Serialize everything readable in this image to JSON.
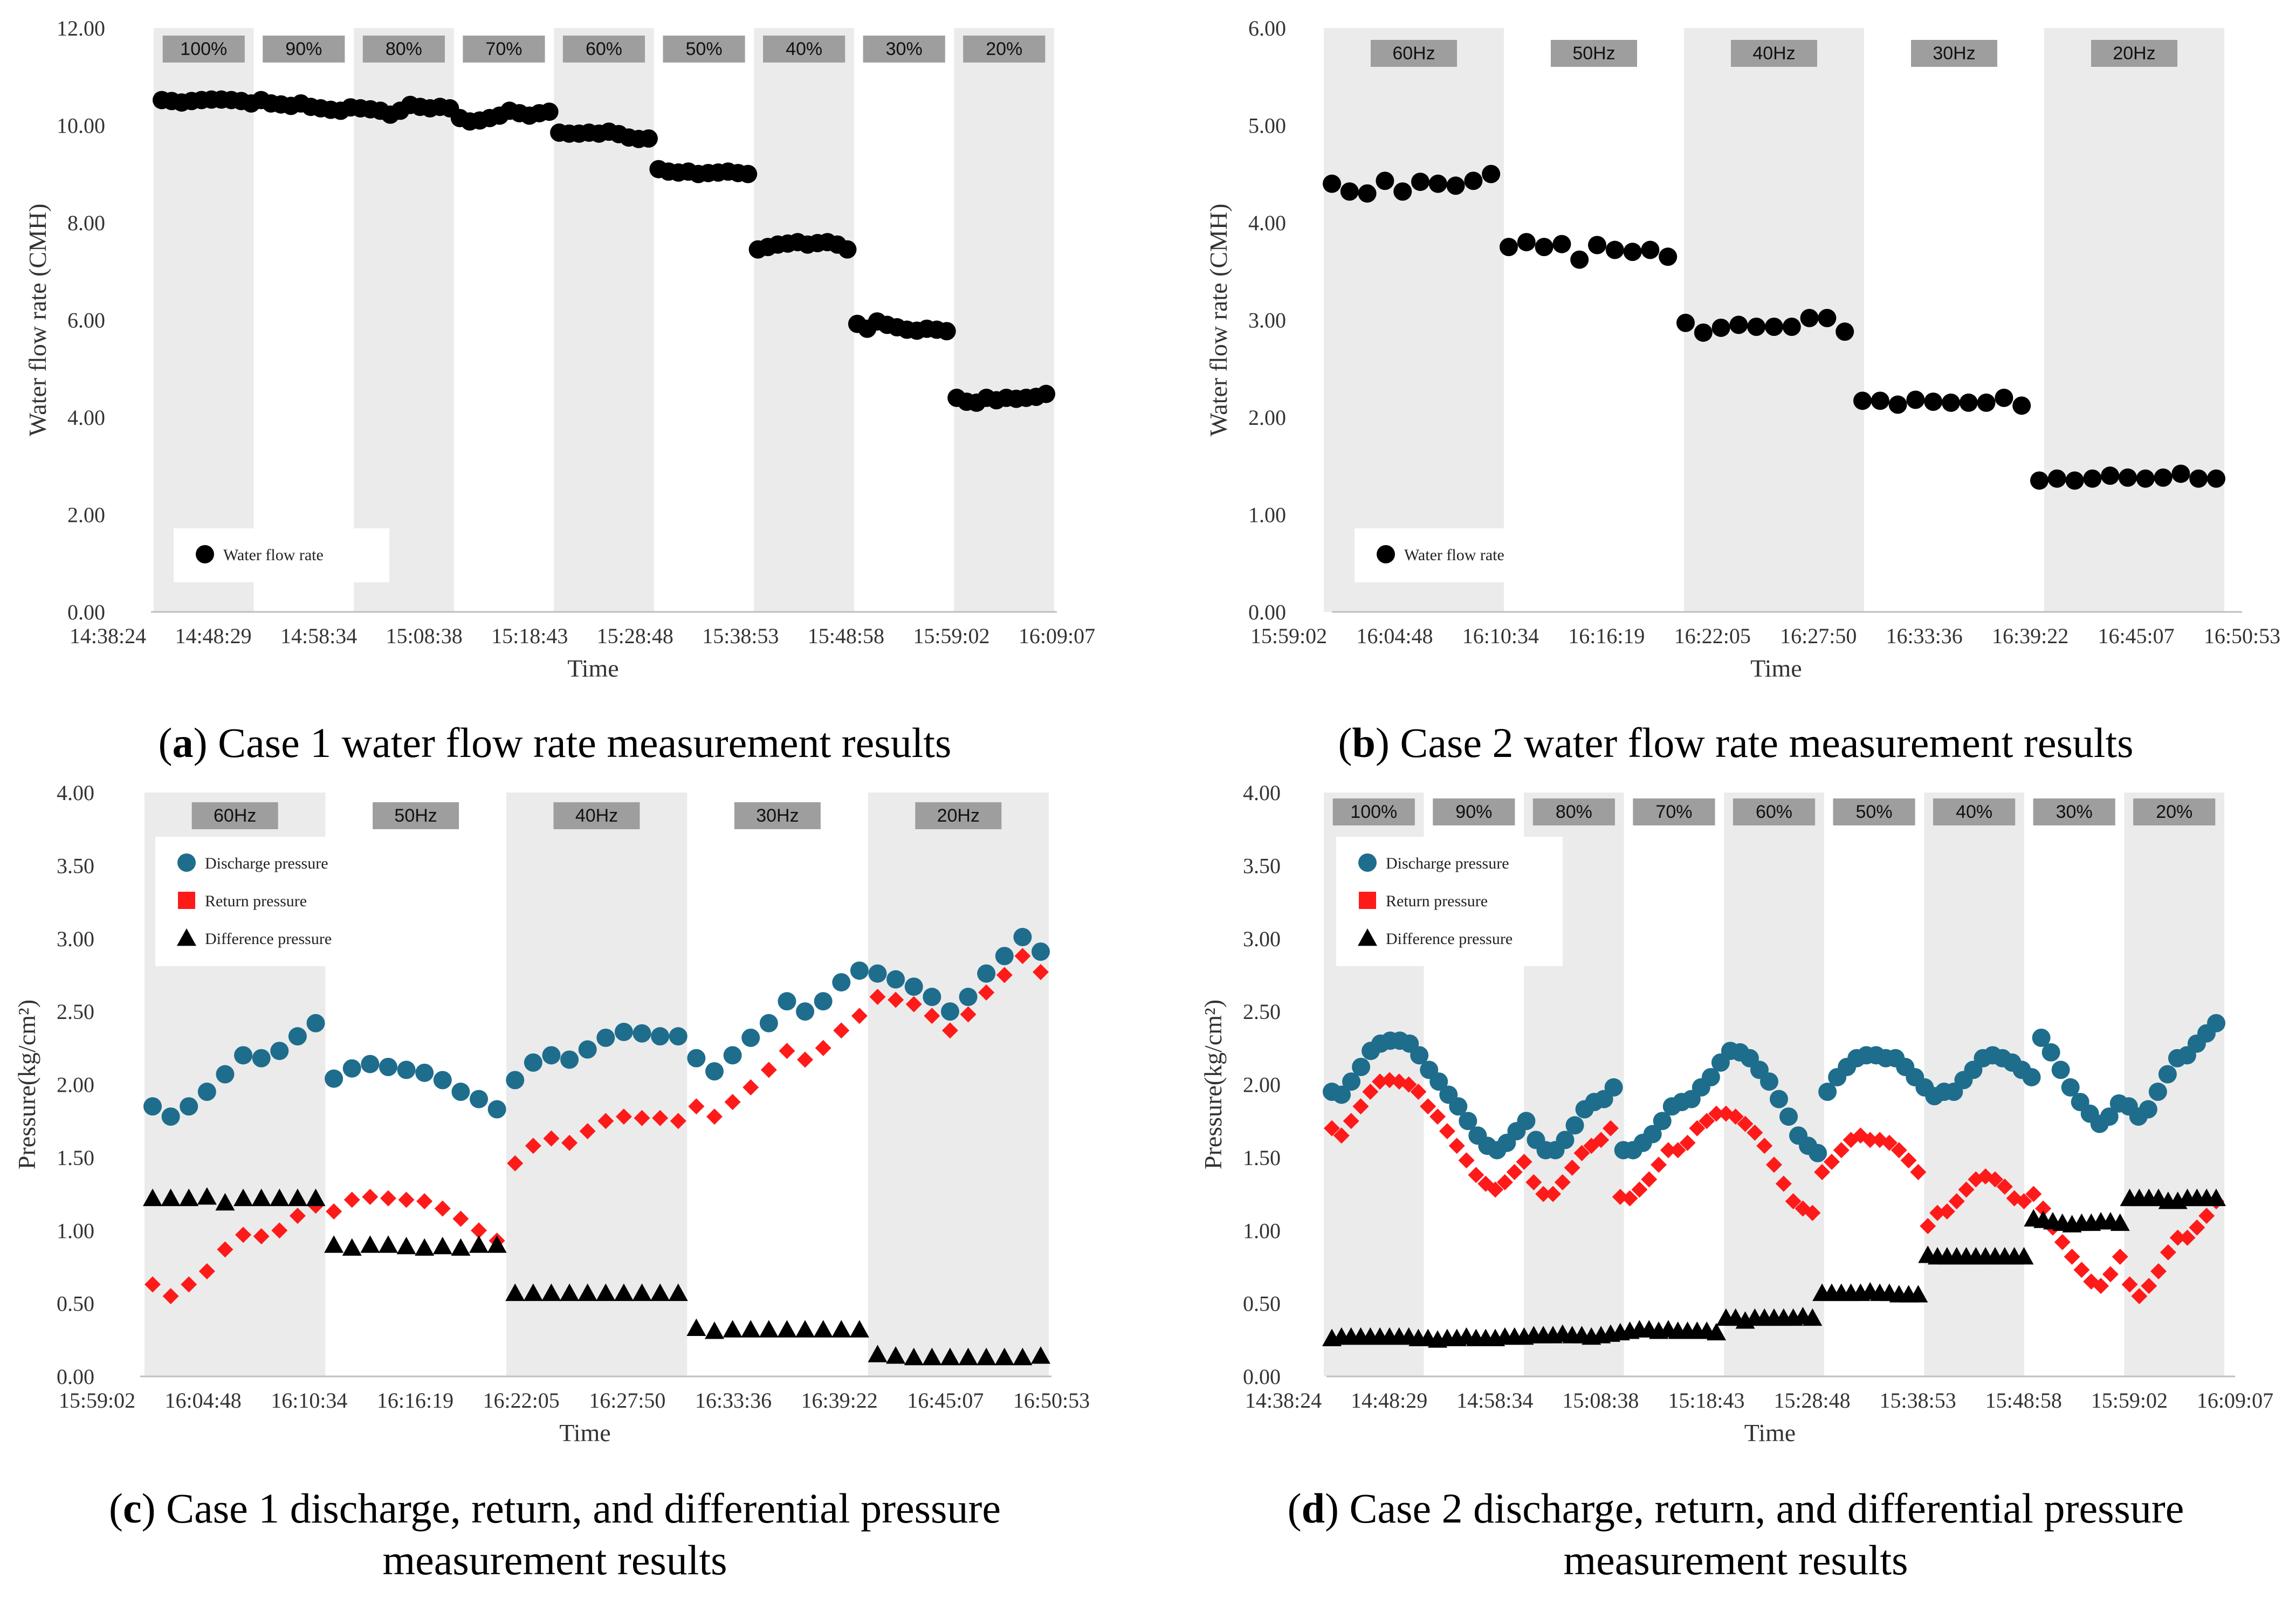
{
  "chart_data": [
    {
      "type": "scatter",
      "panel": "a",
      "ylabel": "Water flow rate (CMH)",
      "xlabel": "Time",
      "ylim": [
        0,
        12
      ],
      "yticks": [
        "0.00",
        "2.00",
        "4.00",
        "6.00",
        "8.00",
        "10.00",
        "12.00"
      ],
      "xticks": [
        "14:38:24",
        "14:48:29",
        "14:58:34",
        "15:08:38",
        "15:18:43",
        "15:28:48",
        "15:38:53",
        "15:48:58",
        "15:59:02",
        "16:09:07"
      ],
      "bands": [
        "100%",
        "90%",
        "80%",
        "70%",
        "60%",
        "50%",
        "40%",
        "30%",
        "20%"
      ],
      "legend_position": "bottom-left",
      "series": [
        {
          "name": "Water flow rate",
          "marker": "circle",
          "color": "#000000",
          "values": [
            10.52,
            10.5,
            10.47,
            10.5,
            10.52,
            10.53,
            10.53,
            10.52,
            10.5,
            10.45,
            10.52,
            10.45,
            10.43,
            10.4,
            10.45,
            10.38,
            10.35,
            10.32,
            10.3,
            10.37,
            10.35,
            10.33,
            10.3,
            10.22,
            10.3,
            10.42,
            10.38,
            10.35,
            10.38,
            10.35,
            10.15,
            10.08,
            10.1,
            10.15,
            10.2,
            10.3,
            10.25,
            10.2,
            10.25,
            10.28,
            9.85,
            9.83,
            9.83,
            9.85,
            9.83,
            9.87,
            9.82,
            9.75,
            9.72,
            9.73,
            9.1,
            9.05,
            9.03,
            9.05,
            9.0,
            9.02,
            9.03,
            9.05,
            9.02,
            9.0,
            7.45,
            7.5,
            7.55,
            7.57,
            7.6,
            7.55,
            7.58,
            7.6,
            7.55,
            7.45,
            5.92,
            5.82,
            5.97,
            5.9,
            5.85,
            5.8,
            5.78,
            5.82,
            5.8,
            5.77,
            4.4,
            4.32,
            4.3,
            4.4,
            4.35,
            4.4,
            4.38,
            4.4,
            4.42,
            4.48
          ]
        }
      ]
    },
    {
      "type": "scatter",
      "panel": "b",
      "ylabel": "Water flow rate (CMH)",
      "xlabel": "Time",
      "ylim": [
        0,
        6
      ],
      "yticks": [
        "0.00",
        "1.00",
        "2.00",
        "3.00",
        "4.00",
        "5.00",
        "6.00"
      ],
      "xticks": [
        "15:59:02",
        "16:04:48",
        "16:10:34",
        "16:16:19",
        "16:22:05",
        "16:27:50",
        "16:33:36",
        "16:39:22",
        "16:45:07",
        "16:50:53"
      ],
      "bands": [
        "60Hz",
        "50Hz",
        "40Hz",
        "30Hz",
        "20Hz"
      ],
      "legend_position": "bottom-left",
      "series": [
        {
          "name": "Water flow rate",
          "marker": "circle",
          "color": "#000000",
          "values": [
            4.4,
            4.32,
            4.3,
            4.43,
            4.32,
            4.42,
            4.4,
            4.38,
            4.43,
            4.5,
            3.75,
            3.8,
            3.75,
            3.78,
            3.62,
            3.77,
            3.72,
            3.7,
            3.72,
            3.65,
            2.97,
            2.87,
            2.92,
            2.95,
            2.93,
            2.93,
            2.93,
            3.02,
            3.02,
            2.88,
            2.17,
            2.17,
            2.13,
            2.18,
            2.16,
            2.15,
            2.15,
            2.15,
            2.2,
            2.12,
            1.35,
            1.37,
            1.35,
            1.37,
            1.4,
            1.38,
            1.37,
            1.38,
            1.42,
            1.37,
            1.37
          ]
        }
      ]
    },
    {
      "type": "scatter",
      "panel": "c",
      "ylabel": "Pressure(kg/cm²)",
      "xlabel": "Time",
      "ylim": [
        0,
        4
      ],
      "yticks": [
        "0.00",
        "0.50",
        "1.00",
        "1.50",
        "2.00",
        "2.50",
        "3.00",
        "3.50",
        "4.00"
      ],
      "xticks": [
        "15:59:02",
        "16:04:48",
        "16:10:34",
        "16:16:19",
        "16:22:05",
        "16:27:50",
        "16:33:36",
        "16:39:22",
        "16:45:07",
        "16:50:53"
      ],
      "bands": [
        "60Hz",
        "50Hz",
        "40Hz",
        "30Hz",
        "20Hz"
      ],
      "legend_position": "top-left",
      "series": [
        {
          "name": "Discharge pressure",
          "marker": "circle",
          "color": "#1f6d8c",
          "values": [
            1.85,
            1.78,
            1.85,
            1.95,
            2.07,
            2.2,
            2.18,
            2.23,
            2.33,
            2.42,
            2.04,
            2.11,
            2.14,
            2.12,
            2.1,
            2.08,
            2.03,
            1.95,
            1.9,
            1.83,
            2.03,
            2.15,
            2.2,
            2.17,
            2.24,
            2.32,
            2.36,
            2.35,
            2.33,
            2.33,
            2.18,
            2.09,
            2.2,
            2.32,
            2.42,
            2.57,
            2.5,
            2.57,
            2.7,
            2.78,
            2.76,
            2.72,
            2.67,
            2.6,
            2.5,
            2.6,
            2.76,
            2.88,
            3.01,
            2.91
          ]
        },
        {
          "name": "Return pressure",
          "marker": "diamond",
          "color": "#ff1a1a",
          "values": [
            0.63,
            0.55,
            0.63,
            0.72,
            0.87,
            0.97,
            0.96,
            1.0,
            1.1,
            1.17,
            1.13,
            1.21,
            1.23,
            1.22,
            1.21,
            1.2,
            1.15,
            1.08,
            1.0,
            0.93,
            1.46,
            1.58,
            1.63,
            1.6,
            1.68,
            1.75,
            1.78,
            1.77,
            1.77,
            1.75,
            1.85,
            1.78,
            1.88,
            1.98,
            2.1,
            2.23,
            2.17,
            2.25,
            2.37,
            2.47,
            2.6,
            2.58,
            2.55,
            2.47,
            2.37,
            2.48,
            2.63,
            2.75,
            2.88,
            2.77
          ]
        },
        {
          "name": "Difference pressure",
          "marker": "triangle",
          "color": "#000000",
          "values": [
            1.22,
            1.22,
            1.22,
            1.23,
            1.19,
            1.22,
            1.22,
            1.22,
            1.22,
            1.22,
            0.9,
            0.88,
            0.9,
            0.9,
            0.89,
            0.88,
            0.89,
            0.88,
            0.9,
            0.9,
            0.57,
            0.57,
            0.57,
            0.57,
            0.57,
            0.57,
            0.57,
            0.57,
            0.57,
            0.57,
            0.33,
            0.31,
            0.32,
            0.32,
            0.32,
            0.32,
            0.32,
            0.32,
            0.32,
            0.32,
            0.15,
            0.14,
            0.13,
            0.13,
            0.13,
            0.13,
            0.13,
            0.13,
            0.13,
            0.14
          ]
        }
      ]
    },
    {
      "type": "scatter",
      "panel": "d",
      "ylabel": "Pressure(kg/cm²)",
      "xlabel": "Time",
      "ylim": [
        0,
        4
      ],
      "yticks": [
        "0.00",
        "0.50",
        "1.00",
        "1.50",
        "2.00",
        "2.50",
        "3.00",
        "3.50",
        "4.00"
      ],
      "xticks": [
        "14:38:24",
        "14:48:29",
        "14:58:34",
        "15:08:38",
        "15:18:43",
        "15:28:48",
        "15:38:53",
        "15:48:58",
        "15:59:02",
        "16:09:07"
      ],
      "bands": [
        "100%",
        "90%",
        "80%",
        "70%",
        "60%",
        "50%",
        "40%",
        "30%",
        "20%"
      ],
      "legend_position": "top-left",
      "series": [
        {
          "name": "Discharge pressure",
          "marker": "circle",
          "color": "#1f6d8c",
          "values": [
            1.95,
            1.93,
            2.02,
            2.12,
            2.23,
            2.28,
            2.3,
            2.3,
            2.28,
            2.2,
            2.1,
            2.02,
            1.93,
            1.85,
            1.75,
            1.65,
            1.58,
            1.55,
            1.6,
            1.68,
            1.75,
            1.62,
            1.55,
            1.55,
            1.62,
            1.72,
            1.83,
            1.88,
            1.9,
            1.98,
            1.55,
            1.55,
            1.6,
            1.66,
            1.75,
            1.85,
            1.88,
            1.9,
            1.98,
            2.05,
            2.15,
            2.23,
            2.22,
            2.18,
            2.1,
            2.02,
            1.9,
            1.78,
            1.65,
            1.58,
            1.53,
            1.95,
            2.05,
            2.12,
            2.18,
            2.2,
            2.2,
            2.18,
            2.18,
            2.12,
            2.05,
            1.98,
            1.92,
            1.95,
            1.95,
            2.03,
            2.1,
            2.18,
            2.2,
            2.18,
            2.15,
            2.1,
            2.05,
            2.32,
            2.22,
            2.1,
            1.98,
            1.88,
            1.8,
            1.73,
            1.78,
            1.87,
            1.85,
            1.78,
            1.83,
            1.95,
            2.07,
            2.18,
            2.2,
            2.28,
            2.35,
            2.42
          ]
        },
        {
          "name": "Return pressure",
          "marker": "diamond",
          "color": "#ff1a1a",
          "values": [
            1.7,
            1.65,
            1.75,
            1.85,
            1.95,
            2.02,
            2.03,
            2.02,
            2.0,
            1.95,
            1.85,
            1.78,
            1.68,
            1.58,
            1.48,
            1.38,
            1.32,
            1.28,
            1.33,
            1.4,
            1.47,
            1.33,
            1.25,
            1.25,
            1.33,
            1.43,
            1.53,
            1.58,
            1.62,
            1.7,
            1.23,
            1.22,
            1.28,
            1.35,
            1.45,
            1.55,
            1.55,
            1.6,
            1.7,
            1.75,
            1.8,
            1.8,
            1.78,
            1.73,
            1.67,
            1.58,
            1.45,
            1.32,
            1.2,
            1.15,
            1.12,
            1.4,
            1.47,
            1.55,
            1.62,
            1.65,
            1.62,
            1.62,
            1.6,
            1.55,
            1.48,
            1.4,
            1.03,
            1.12,
            1.13,
            1.2,
            1.28,
            1.35,
            1.37,
            1.35,
            1.3,
            1.22,
            1.2,
            1.25,
            1.15,
            1.02,
            0.92,
            0.82,
            0.73,
            0.65,
            0.62,
            0.7,
            0.82,
            0.63,
            0.55,
            0.62,
            0.72,
            0.85,
            0.95,
            0.95,
            1.02,
            1.1,
            1.2
          ]
        },
        {
          "name": "Difference pressure",
          "marker": "triangle",
          "color": "#000000",
          "values": [
            0.26,
            0.27,
            0.27,
            0.27,
            0.27,
            0.27,
            0.27,
            0.27,
            0.27,
            0.26,
            0.26,
            0.25,
            0.26,
            0.26,
            0.27,
            0.26,
            0.26,
            0.26,
            0.27,
            0.27,
            0.27,
            0.28,
            0.28,
            0.28,
            0.29,
            0.28,
            0.28,
            0.27,
            0.28,
            0.29,
            0.3,
            0.31,
            0.32,
            0.32,
            0.31,
            0.32,
            0.31,
            0.31,
            0.31,
            0.31,
            0.3,
            0.4,
            0.4,
            0.38,
            0.4,
            0.4,
            0.4,
            0.4,
            0.4,
            0.41,
            0.4,
            0.57,
            0.57,
            0.57,
            0.57,
            0.57,
            0.58,
            0.57,
            0.57,
            0.56,
            0.56,
            0.56,
            0.83,
            0.82,
            0.82,
            0.82,
            0.82,
            0.82,
            0.82,
            0.82,
            0.82,
            0.82,
            0.82,
            1.08,
            1.07,
            1.06,
            1.05,
            1.04,
            1.05,
            1.05,
            1.06,
            1.06,
            1.05,
            1.22,
            1.22,
            1.22,
            1.22,
            1.2,
            1.2,
            1.22,
            1.22,
            1.22,
            1.22
          ]
        }
      ]
    }
  ],
  "captions": {
    "a": {
      "letter": "a",
      "text": " Case 1 water flow rate measurement results"
    },
    "b": {
      "letter": "b",
      "text": " Case 2 water flow rate measurement results"
    },
    "c": {
      "letter": "c",
      "line1": " Case 1 discharge, return, and differential pressure",
      "line2": "measurement results"
    },
    "d": {
      "letter": "d",
      "line1": " Case 2 discharge, return, and differential pressure",
      "line2": "measurement results"
    }
  }
}
